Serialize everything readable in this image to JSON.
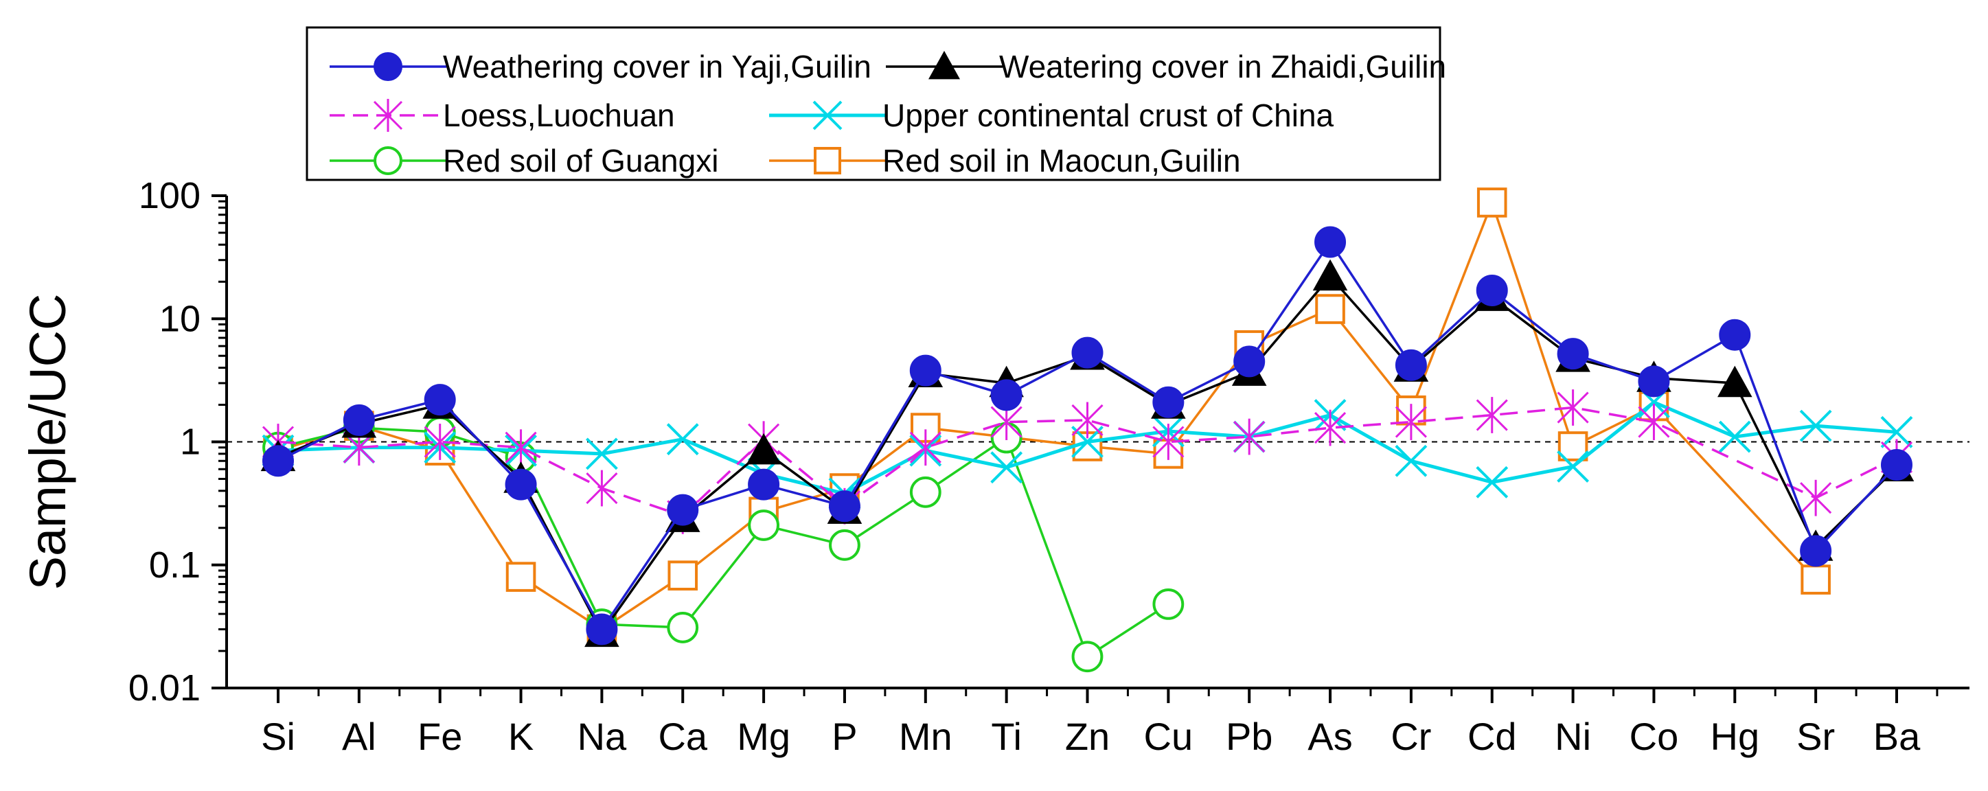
{
  "chart_data": {
    "type": "line",
    "title": "",
    "xlabel": "",
    "ylabel": "Sample/UCC",
    "yscale": "log",
    "ylim": [
      0.01,
      100
    ],
    "yticks": [
      "0.01",
      "0.1",
      "1",
      "10",
      "100"
    ],
    "reference_line": 1,
    "grid": false,
    "legend_position": "top",
    "categories": [
      "Si",
      "Al",
      "Fe",
      "K",
      "Na",
      "Ca",
      "Mg",
      "P",
      "Mn",
      "Ti",
      "Zn",
      "Cu",
      "Pb",
      "As",
      "Cr",
      "Cd",
      "Ni",
      "Co",
      "Hg",
      "Sr",
      "Ba"
    ],
    "series": [
      {
        "name": "Weathering cover in Yaji,Guilin",
        "color": "#1f1fd0",
        "marker": "circle-filled",
        "dash": "solid",
        "values": [
          0.7,
          1.5,
          2.2,
          0.45,
          0.03,
          0.28,
          0.45,
          0.3,
          3.8,
          2.4,
          5.3,
          2.1,
          4.5,
          42,
          4.2,
          17,
          5.2,
          3.1,
          7.4,
          0.13,
          0.65
        ]
      },
      {
        "name": "Weatering cover in Zhaidi,Guilin",
        "color": "#000000",
        "marker": "triangle-filled",
        "dash": "solid",
        "values": [
          0.75,
          1.4,
          2.0,
          0.5,
          0.028,
          0.24,
          0.85,
          0.28,
          3.6,
          3.0,
          5.0,
          2.0,
          3.7,
          22,
          4.0,
          15,
          4.8,
          3.3,
          3.0,
          0.14,
          0.62
        ]
      },
      {
        "name": "Loess,Luochuan",
        "color": "#e020e0",
        "marker": "asterisk",
        "dash": "dashed",
        "values": [
          1.0,
          0.9,
          1.0,
          0.9,
          0.42,
          0.25,
          1.05,
          0.3,
          0.9,
          1.45,
          1.5,
          1.0,
          1.1,
          1.3,
          1.45,
          1.65,
          1.9,
          1.45,
          null,
          0.35,
          0.75
        ]
      },
      {
        "name": "Upper continental crust of China",
        "color": "#00d8e8",
        "marker": "x",
        "dash": "solid",
        "values": [
          0.85,
          0.9,
          0.9,
          0.85,
          0.8,
          1.05,
          0.55,
          0.38,
          0.85,
          0.62,
          1.0,
          1.22,
          1.1,
          1.65,
          0.7,
          0.47,
          0.63,
          2.1,
          1.1,
          1.35,
          1.2
        ]
      },
      {
        "name": "Red soil of Guangxi",
        "color": "#20d020",
        "marker": "circle-open",
        "dash": "solid",
        "values": [
          0.9,
          1.3,
          1.2,
          0.75,
          0.033,
          0.031,
          0.21,
          0.145,
          0.39,
          1.08,
          0.018,
          0.048,
          null,
          null,
          null,
          null,
          null,
          null,
          null,
          null,
          null
        ]
      },
      {
        "name": "Red soil in Maocun,Guilin",
        "color": "#f08010",
        "marker": "square-open",
        "dash": "solid",
        "values": [
          0.85,
          1.35,
          0.85,
          0.08,
          0.03,
          0.082,
          0.27,
          0.42,
          1.3,
          null,
          0.92,
          0.8,
          6.1,
          12,
          1.8,
          88,
          0.92,
          1.95,
          null,
          0.076,
          null
        ]
      }
    ]
  }
}
